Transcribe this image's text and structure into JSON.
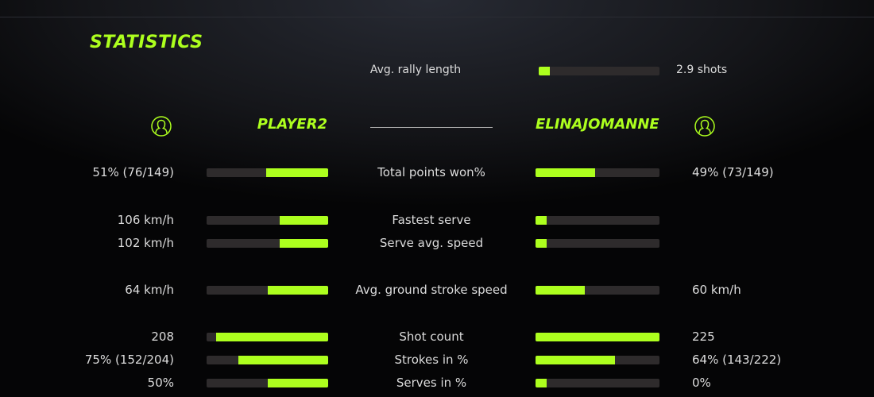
{
  "title": "STATISTICS",
  "accent_color": "#adff1e",
  "track_color": "#2e2b2c",
  "rally": {
    "label": "Avg. rally length",
    "value": "2.9 shots",
    "fill": 0.09
  },
  "players": {
    "left": {
      "name": "PLAYER2",
      "icon": "user-circle-icon"
    },
    "right": {
      "name": "ELINAJOMANNE",
      "icon": "user-circle-icon"
    }
  },
  "stats": [
    {
      "label": "Total points won%",
      "left": "51% (76/149)",
      "right": "49% (73/149)",
      "left_fill": 0.51,
      "right_fill": 0.48
    },
    {
      "label": "Fastest serve",
      "left": "106 km/h",
      "right": "",
      "left_fill": 0.4,
      "right_fill": 0.09
    },
    {
      "label": "Serve avg. speed",
      "left": "102 km/h",
      "right": "",
      "left_fill": 0.4,
      "right_fill": 0.09
    },
    {
      "label": "Avg. ground stroke speed",
      "left": "64 km/h",
      "right": "60 km/h",
      "left_fill": 0.5,
      "right_fill": 0.4
    },
    {
      "label": "Shot count",
      "left": "208",
      "right": "225",
      "left_fill": 0.92,
      "right_fill": 1.0
    },
    {
      "label": "Strokes in %",
      "left": "75% (152/204)",
      "right": "64% (143/222)",
      "left_fill": 0.74,
      "right_fill": 0.64
    },
    {
      "label": "Serves in %",
      "left": "50%",
      "right": "0%",
      "left_fill": 0.5,
      "right_fill": 0.09
    }
  ]
}
